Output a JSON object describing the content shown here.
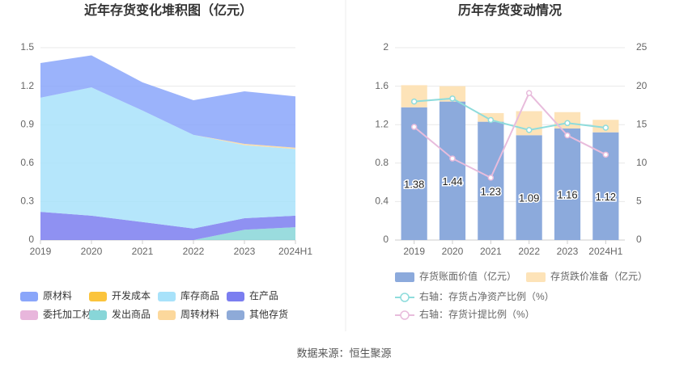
{
  "chart_data": [
    {
      "type": "area",
      "title": "近年存货变化堆积图（亿元）",
      "categories": [
        "2019",
        "2020",
        "2021",
        "2022",
        "2023",
        "2024H1"
      ],
      "ylim": [
        0,
        1.5
      ],
      "yticks": [
        0,
        0.3,
        0.6,
        0.9,
        1.2,
        1.5
      ],
      "grid": true,
      "legend": "bottom",
      "series": [
        {
          "name": "原材料",
          "color": "#8aa6fa",
          "values": [
            0.27,
            0.25,
            0.22,
            0.27,
            0.41,
            0.4
          ]
        },
        {
          "name": "开发成本",
          "color": "#fbc43c",
          "values": [
            0,
            0,
            0,
            0,
            0,
            0
          ]
        },
        {
          "name": "库存商品",
          "color": "#a8e2fa",
          "values": [
            0.89,
            1.0,
            0.87,
            0.73,
            0.57,
            0.52
          ]
        },
        {
          "name": "在产品",
          "color": "#7b7ef0",
          "values": [
            0.22,
            0.19,
            0.14,
            0.09,
            0.09,
            0.09
          ]
        },
        {
          "name": "委托加工材料",
          "color": "#e8b6dc",
          "values": [
            0,
            0,
            0,
            0,
            0,
            0
          ]
        },
        {
          "name": "发出商品",
          "color": "#88d6d8",
          "values": [
            0,
            0,
            0,
            0,
            0.08,
            0.1
          ]
        },
        {
          "name": "周转材料",
          "color": "#fcd89c",
          "values": [
            0,
            0,
            0,
            0,
            0.01,
            0.01
          ]
        },
        {
          "name": "其他存货",
          "color": "#8eaad8",
          "values": [
            0,
            0,
            0,
            0,
            0,
            0
          ]
        }
      ],
      "stack_order": [
        "发出商品",
        "在产品",
        "委托加工材料",
        "其他存货",
        "开发成本",
        "库存商品",
        "周转材料",
        "原材料"
      ]
    },
    {
      "type": "bar",
      "title": "历年存货变动情况",
      "categories": [
        "2019",
        "2020",
        "2021",
        "2022",
        "2023",
        "2024H1"
      ],
      "ylim": [
        0,
        2
      ],
      "yticks": [
        0,
        0.4,
        0.8,
        1.2,
        1.6,
        2
      ],
      "y2lim": [
        0,
        25
      ],
      "y2ticks": [
        0,
        5,
        10,
        15,
        20,
        25
      ],
      "grid": true,
      "legend": "bottom",
      "series": [
        {
          "name": "存货账面价值（亿元）",
          "type": "bar",
          "color": "#8caadc",
          "values": [
            1.38,
            1.44,
            1.23,
            1.09,
            1.16,
            1.12
          ],
          "labels": true
        },
        {
          "name": "存货跌价准备（亿元）",
          "type": "bar",
          "color": "#fde3b8",
          "values": [
            0.23,
            0.16,
            0.09,
            0.25,
            0.17,
            0.13
          ]
        },
        {
          "name": "右轴：存货占净资产比例（%）",
          "type": "line",
          "axis": "y2",
          "color": "#8edcdc",
          "values": [
            18.0,
            18.4,
            15.6,
            14.3,
            15.2,
            14.6
          ]
        },
        {
          "name": "右轴：存货计提比例（%）",
          "type": "line",
          "axis": "y2",
          "color": "#e8bcdc",
          "values": [
            14.7,
            10.6,
            8.1,
            19.1,
            13.6,
            11.1
          ]
        }
      ]
    }
  ],
  "source": "数据来源：恒生聚源"
}
